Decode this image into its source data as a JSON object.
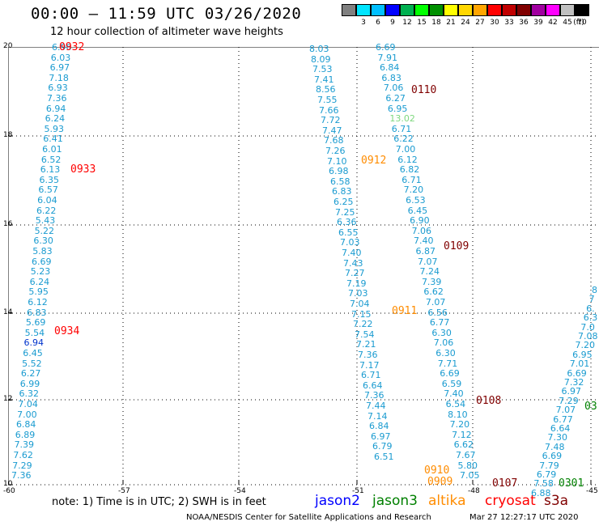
{
  "title": "00:00 – 11:59 UTC 03/26/2020",
  "subtitle": "12 hour collection of altimeter wave heights",
  "legend": {
    "unit_label": "(ft)",
    "bins": [
      {
        "label": "",
        "color": "#808080"
      },
      {
        "label": "3",
        "color": "#00e5ff"
      },
      {
        "label": "6",
        "color": "#00bfff"
      },
      {
        "label": "9",
        "color": "#0000ff"
      },
      {
        "label": "12",
        "color": "#00b050"
      },
      {
        "label": "15",
        "color": "#00ff00"
      },
      {
        "label": "18",
        "color": "#009000"
      },
      {
        "label": "21",
        "color": "#ffff00"
      },
      {
        "label": "24",
        "color": "#ffd700"
      },
      {
        "label": "27",
        "color": "#ffa500"
      },
      {
        "label": "30",
        "color": "#ff0000"
      },
      {
        "label": "33",
        "color": "#c00000"
      },
      {
        "label": "36",
        "color": "#800000"
      },
      {
        "label": "39",
        "color": "#a000a0"
      },
      {
        "label": "42",
        "color": "#ff00ff"
      },
      {
        "label": "45",
        "color": "#c0c0c0"
      },
      {
        "label": "70",
        "color": "#000000"
      }
    ]
  },
  "axes": {
    "lat_labels": [
      "20",
      "18",
      "16",
      "14",
      "12",
      "10"
    ],
    "lon_labels": [
      "-60",
      "-57",
      "-54",
      "-51",
      "-48",
      "-45"
    ]
  },
  "tracks": [
    {
      "values": [
        "6.96",
        "6.03",
        "6.97",
        "7.18",
        "6.93",
        "7.36",
        "6.94",
        "6.24",
        "5.93",
        "6.41",
        "6.01",
        "6.52",
        "6.13",
        "6.35",
        "6.57",
        "6.04",
        "6.22",
        "5.43",
        "5.22",
        "6.30",
        "5.83",
        "6.69",
        "5.23",
        "6.24",
        "5.95",
        "6.12",
        "6.83",
        "5.69",
        "5.54",
        "6.94",
        "6.45",
        "5.52",
        "6.27",
        "6.99",
        "6.32",
        "7.04",
        "7.00",
        "6.84",
        "6.89",
        "7.39",
        "7.62",
        "7.29",
        "7.36"
      ]
    },
    {
      "values": [
        "8.03",
        "8.09",
        "7.53",
        "7.41",
        "8.56",
        "7.55",
        "7.66",
        "7.72",
        "7.47",
        "7.68",
        "7.26",
        "7.10",
        "6.98",
        "6.58",
        "6.83",
        "6.25",
        "7.25",
        "6.36",
        "6.55",
        "7.03",
        "7.40",
        "7.43",
        "7.27",
        "7.19",
        "7.03",
        "7.04",
        "7.15",
        "7.22",
        "7.54",
        "7.21",
        "7.36",
        "7.17",
        "6.71",
        "6.64",
        "7.36",
        "7.44",
        "7.14",
        "6.84",
        "6.97",
        "6.79",
        "6.51"
      ]
    },
    {
      "values": [
        "6.69",
        "7.91",
        "6.84",
        "6.83",
        "7.06",
        "6.27",
        "6.95",
        "13.02",
        "6.71",
        "6.22",
        "7.00",
        "6.12",
        "6.82",
        "6.71",
        "7.20",
        "6.53",
        "6.45",
        "6.90",
        "7.06",
        "7.40",
        "6.87",
        "7.07",
        "7.24",
        "7.39",
        "6.62",
        "7.07",
        "6.56",
        "6.77",
        "6.30",
        "7.06",
        "6.30",
        "7.71",
        "6.69",
        "6.59",
        "7.40",
        "6.54",
        "8.10",
        "7.20",
        "7.12",
        "6.62",
        "7.67",
        "5.80",
        "7.05"
      ]
    },
    {
      "values": [
        "8",
        "7",
        "6.",
        "6.3",
        "7.0",
        "7.08",
        "7.20",
        "6.95",
        "7.01",
        "6.69",
        "7.32",
        "6.97",
        "7.29",
        "7.07",
        "6.77",
        "6.64",
        "7.30",
        "7.48",
        "6.69",
        "7.79",
        "6.79",
        "7.58",
        "6.88"
      ]
    }
  ],
  "time_marks": [
    {
      "text": "0932",
      "color": "#ff0000"
    },
    {
      "text": "0933",
      "color": "#ff0000"
    },
    {
      "text": "0934",
      "color": "#ff0000"
    },
    {
      "text": "0912",
      "color": "#ff8c00"
    },
    {
      "text": "0911",
      "color": "#ff8c00"
    },
    {
      "text": "0910",
      "color": "#ff8c00"
    },
    {
      "text": "0909",
      "color": "#ff8c00"
    },
    {
      "text": "0110",
      "color": "#800000"
    },
    {
      "text": "0109",
      "color": "#800000"
    },
    {
      "text": "0108",
      "color": "#800000"
    },
    {
      "text": "0107",
      "color": "#800000"
    },
    {
      "text": "0301",
      "color": "#008000"
    },
    {
      "text": "03",
      "color": "#008000"
    }
  ],
  "note": "note:  1) Time is in UTC;  2) SWH is in feet",
  "satellites": [
    {
      "name": "jason2",
      "color": "#0000ff"
    },
    {
      "name": "jason3",
      "color": "#008000"
    },
    {
      "name": "altika",
      "color": "#ff8c00"
    },
    {
      "name": "cryosat",
      "color": "#ff0000"
    },
    {
      "name": "s3a",
      "color": "#800000"
    }
  ],
  "footer": "NOAA/NESDIS Center for Satellite Applications and Research",
  "timestamp": "Mar 27 12:27:17 UTC 2020"
}
